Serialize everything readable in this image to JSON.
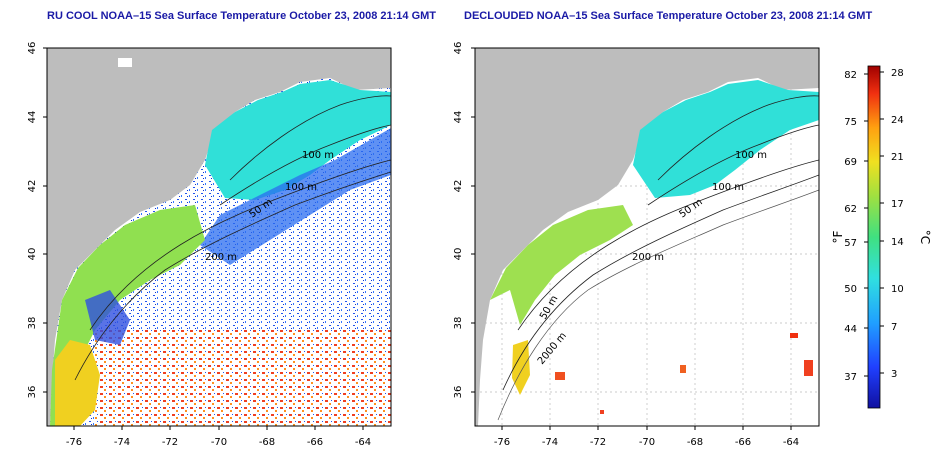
{
  "titles": {
    "left": "RU COOL NOAA–15 Sea Surface Temperature October 23, 2008 21:14 GMT",
    "right": "DECLOUDED NOAA–15 Sea Surface Temperature October 23, 2008 21:14 GMT"
  },
  "axes": {
    "x_ticks": [
      "-76",
      "-74",
      "-72",
      "-70",
      "-68",
      "-66",
      "-64"
    ],
    "y_ticks": [
      "46",
      "44",
      "42",
      "40",
      "38",
      "36"
    ]
  },
  "contours_left": [
    "100 m",
    "100 m",
    "50 m",
    "200 m"
  ],
  "contours_right": [
    "100 m",
    "100 m",
    "50 m",
    "200 m",
    "50 m",
    "2000 m"
  ],
  "colorbar": {
    "unit_f": "°F",
    "unit_c": "°C",
    "f_labels": [
      "82",
      "75",
      "69",
      "62",
      "57",
      "50",
      "44",
      "37"
    ],
    "c_labels": [
      "28",
      "24",
      "21",
      "17",
      "14",
      "10",
      "7",
      "3"
    ]
  },
  "colors": {
    "land": "#bdbdbd",
    "title": "#1a1aa6"
  }
}
